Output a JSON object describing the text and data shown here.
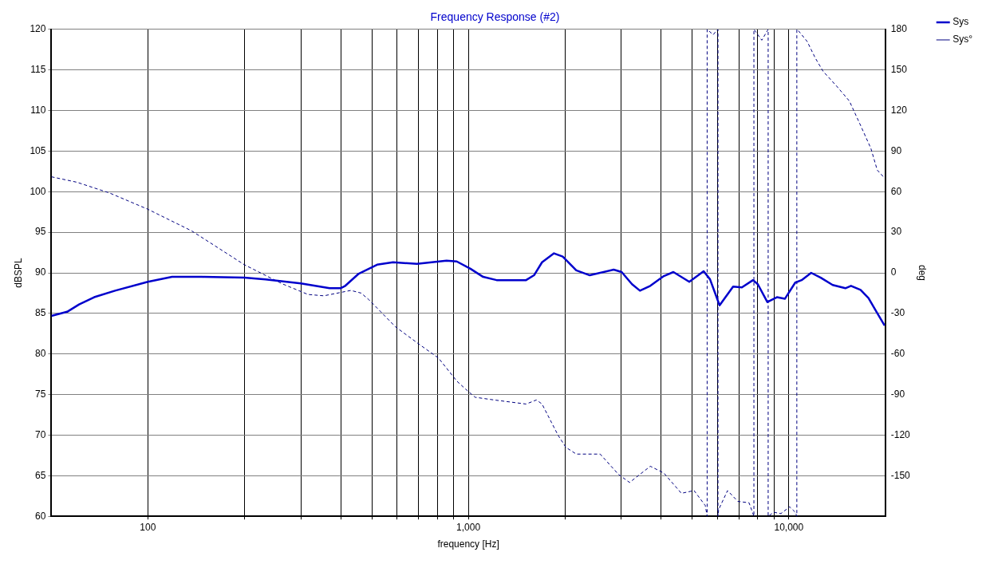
{
  "chart_data": {
    "type": "line",
    "title": "Frequency Response (#2)",
    "xlabel": "frequency [Hz]",
    "ylabel": "dBSPL",
    "y2label": "deg",
    "log": "x",
    "grid": true,
    "legend": "top right",
    "marker": "none",
    "xlim": [
      50,
      20000
    ],
    "xticks": [
      {
        "value": 100,
        "label": "100"
      },
      {
        "value": 200,
        "label": null
      },
      {
        "value": 300,
        "label": null
      },
      {
        "value": 400,
        "label": null
      },
      {
        "value": 500,
        "label": null
      },
      {
        "value": 600,
        "label": null
      },
      {
        "value": 700,
        "label": null
      },
      {
        "value": 800,
        "label": null
      },
      {
        "value": 900,
        "label": null
      },
      {
        "value": 1000,
        "label": "1,000"
      },
      {
        "value": 2000,
        "label": null
      },
      {
        "value": 3000,
        "label": null
      },
      {
        "value": 4000,
        "label": null
      },
      {
        "value": 5000,
        "label": null
      },
      {
        "value": 6000,
        "label": null
      },
      {
        "value": 7000,
        "label": null
      },
      {
        "value": 8000,
        "label": null
      },
      {
        "value": 9000,
        "label": null
      },
      {
        "value": 10000,
        "label": "10,000"
      }
    ],
    "ylim": [
      60,
      120
    ],
    "yticks": [
      60,
      65,
      70,
      75,
      80,
      85,
      90,
      95,
      100,
      105,
      110,
      115,
      120
    ],
    "y2lim": [
      -180,
      180
    ],
    "y2ticks": [
      -150,
      -120,
      -90,
      -60,
      -30,
      0,
      30,
      60,
      90,
      120,
      150,
      180
    ],
    "series": [
      {
        "name": "Sys",
        "color": "#0000cc",
        "line_style": "solid",
        "x": [
          50,
          56,
          61,
          68,
          79,
          100,
          119,
          148,
          200,
          233,
          300,
          369,
          399,
          413,
          455,
          519,
          582,
          691,
          855,
          920,
          1015,
          1112,
          1225,
          1514,
          1603,
          1698,
          1850,
          1970,
          2171,
          2393,
          2841,
          3008,
          3241,
          3431,
          3696,
          4073,
          4363,
          4891,
          5423,
          5676,
          6080,
          6701,
          7136,
          7730,
          8000,
          8569,
          9178,
          9718,
          10470,
          10960,
          11740,
          12580,
          13700,
          15010,
          15630,
          16740,
          17720,
          18770,
          19900
        ],
        "values": [
          84.7,
          85.2,
          86.1,
          87.0,
          87.8,
          88.9,
          89.5,
          89.5,
          89.4,
          89.2,
          88.7,
          88.1,
          88.1,
          88.4,
          89.9,
          91.0,
          91.3,
          91.1,
          91.5,
          91.4,
          90.5,
          89.5,
          89.1,
          89.1,
          89.7,
          91.3,
          92.4,
          92.0,
          90.3,
          89.7,
          90.4,
          90.1,
          88.6,
          87.8,
          88.4,
          89.6,
          90.1,
          88.9,
          90.2,
          89.2,
          86.0,
          88.3,
          88.2,
          89.1,
          88.6,
          86.4,
          87.0,
          86.8,
          88.8,
          89.1,
          90.0,
          89.4,
          88.5,
          88.1,
          88.4,
          87.9,
          86.9,
          85.2,
          83.5
        ]
      },
      {
        "name": "Sys°",
        "color": "#000080",
        "line_style": "dashed",
        "axis": "y2",
        "x": [
          50,
          60,
          76,
          100,
          137,
          200,
          262,
          316,
          354,
          430,
          463,
          490,
          593,
          704,
          807,
          920,
          991,
          1050,
          1204,
          1514,
          1631,
          1698,
          1904,
          2015,
          2171,
          2578,
          2940,
          3185,
          3696,
          4073,
          4620,
          5061,
          5485,
          5560,
          5560,
          5808,
          5942,
          6010,
          6010,
          6040,
          6438,
          6934,
          7513,
          7780,
          7780,
          8233,
          8569,
          8620,
          8620,
          8972,
          9445,
          10060,
          10470,
          10590,
          10590,
          10710,
          11410,
          12080,
          12790,
          14100,
          15450,
          16740,
          18030,
          18870,
          19900
        ],
        "values": [
          71,
          67,
          59,
          47,
          31,
          6,
          -8,
          -16,
          -17,
          -13,
          -15,
          -20,
          -40,
          -53,
          -63,
          -80,
          -87,
          -92,
          -94,
          -97,
          -94,
          -97,
          -120,
          -129,
          -134,
          -134,
          -149,
          -155,
          -143,
          -148,
          -163,
          -161,
          -172,
          -180,
          180,
          176,
          179,
          180,
          -180,
          -175,
          -161,
          -169,
          -170,
          -180,
          180,
          172,
          179,
          180,
          -180,
          -177,
          -178,
          -173,
          -177,
          -180,
          180,
          179,
          171,
          159,
          149,
          138,
          127,
          109,
          92,
          76,
          70
        ]
      }
    ]
  }
}
